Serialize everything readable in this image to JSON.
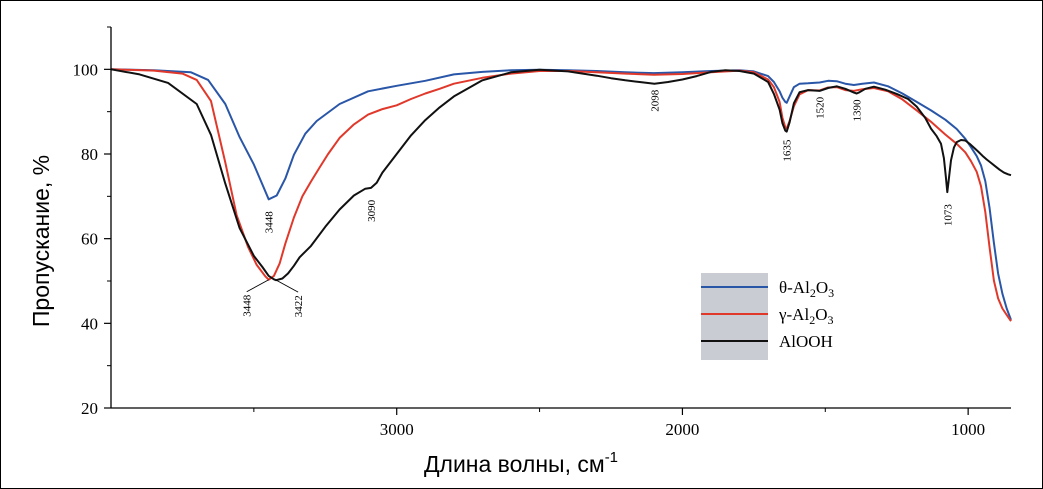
{
  "chart_data": {
    "type": "line",
    "title": "",
    "xlabel": "Длина волны, см",
    "xlabel_sup": "-1",
    "ylabel": "Пропускание, %",
    "xlim": [
      4000,
      850
    ],
    "ylim": [
      20,
      110
    ],
    "xticks": [
      3000,
      2000,
      1000
    ],
    "xtick_labels": [
      "3000",
      "2000",
      "1000"
    ],
    "yticks": [
      20,
      40,
      60,
      80,
      100
    ],
    "ytick_labels": [
      "20",
      "40",
      "60",
      "80",
      "100"
    ],
    "grid": false,
    "legend_position": "right",
    "series": [
      {
        "name": "θ-Al2O3",
        "legend_main": "θ-Al",
        "legend_sub1": "2",
        "legend_mid": "O",
        "legend_sub2": "3",
        "color": "#2a56a8",
        "x": [
          4000,
          3850,
          3720,
          3660,
          3600,
          3550,
          3500,
          3470,
          3448,
          3420,
          3390,
          3360,
          3320,
          3280,
          3200,
          3100,
          3000,
          2900,
          2800,
          2700,
          2600,
          2500,
          2400,
          2300,
          2200,
          2100,
          2000,
          1900,
          1800,
          1750,
          1700,
          1680,
          1660,
          1650,
          1640,
          1635,
          1625,
          1610,
          1590,
          1560,
          1520,
          1490,
          1460,
          1430,
          1400,
          1370,
          1330,
          1280,
          1230,
          1180,
          1130,
          1080,
          1040,
          1010,
          990,
          970,
          955,
          940,
          925,
          910,
          895,
          880,
          865,
          850
        ],
        "y": [
          100,
          99.8,
          99.3,
          97.5,
          91.8,
          84.0,
          77.5,
          72.8,
          69.3,
          70.2,
          74.2,
          79.8,
          84.8,
          87.8,
          91.8,
          94.8,
          96.1,
          97.3,
          98.8,
          99.4,
          99.8,
          99.9,
          99.8,
          99.6,
          99.3,
          99.1,
          99.3,
          99.6,
          99.8,
          99.5,
          98.4,
          97.0,
          94.8,
          93.3,
          92.3,
          92.1,
          93.6,
          95.8,
          96.6,
          96.7,
          96.9,
          97.3,
          97.2,
          96.6,
          96.3,
          96.6,
          96.9,
          96.0,
          94.3,
          92.3,
          90.3,
          88.1,
          85.9,
          83.6,
          81.6,
          79.5,
          77.3,
          73.6,
          67.2,
          59.0,
          51.8,
          47.0,
          43.5,
          40.8
        ]
      },
      {
        "name": "γ-Al2O3",
        "legend_main": "γ-Al",
        "legend_sub1": "2",
        "legend_mid": "O",
        "legend_sub2": "3",
        "color": "#e0392b",
        "x": [
          4000,
          3850,
          3750,
          3700,
          3650,
          3600,
          3560,
          3520,
          3490,
          3460,
          3448,
          3430,
          3410,
          3390,
          3360,
          3330,
          3300,
          3270,
          3240,
          3200,
          3150,
          3100,
          3050,
          3000,
          2950,
          2900,
          2850,
          2800,
          2700,
          2600,
          2500,
          2400,
          2300,
          2200,
          2100,
          2000,
          1900,
          1800,
          1750,
          1700,
          1680,
          1660,
          1650,
          1640,
          1635,
          1625,
          1610,
          1590,
          1560,
          1520,
          1490,
          1460,
          1430,
          1400,
          1370,
          1330,
          1280,
          1230,
          1180,
          1130,
          1080,
          1040,
          1010,
          990,
          970,
          955,
          940,
          925,
          910,
          895,
          880,
          865,
          850
        ],
        "y": [
          100,
          99.7,
          99.0,
          97.5,
          92.5,
          78.0,
          65.5,
          58.0,
          53.8,
          51.1,
          50.3,
          51.2,
          54.1,
          58.8,
          65.0,
          70.0,
          73.5,
          76.8,
          80.0,
          83.8,
          87.0,
          89.3,
          90.6,
          91.5,
          93.0,
          94.3,
          95.4,
          96.6,
          98.0,
          99.0,
          99.6,
          99.6,
          99.3,
          99.0,
          98.7,
          98.9,
          99.3,
          99.7,
          99.3,
          97.6,
          95.8,
          92.3,
          88.6,
          86.3,
          86.0,
          87.8,
          91.3,
          94.1,
          95.1,
          95.0,
          95.7,
          95.8,
          95.1,
          94.9,
          95.3,
          95.6,
          94.8,
          92.9,
          90.3,
          87.6,
          84.6,
          82.4,
          80.4,
          78.3,
          75.8,
          72.4,
          66.3,
          57.9,
          50.1,
          45.9,
          43.5,
          42.0,
          40.5
        ]
      },
      {
        "name": "AlOOH",
        "legend_main": "AlOOH",
        "legend_sub1": "",
        "legend_mid": "",
        "legend_sub2": "",
        "color": "#111111",
        "x": [
          4000,
          3900,
          3800,
          3700,
          3650,
          3600,
          3550,
          3500,
          3470,
          3448,
          3430,
          3422,
          3400,
          3380,
          3360,
          3340,
          3300,
          3250,
          3200,
          3150,
          3110,
          3090,
          3070,
          3050,
          3000,
          2950,
          2900,
          2850,
          2800,
          2700,
          2600,
          2500,
          2400,
          2300,
          2250,
          2200,
          2150,
          2098,
          2050,
          2000,
          1950,
          1900,
          1850,
          1800,
          1750,
          1700,
          1680,
          1660,
          1650,
          1640,
          1635,
          1625,
          1610,
          1590,
          1560,
          1520,
          1490,
          1460,
          1430,
          1400,
          1390,
          1380,
          1360,
          1330,
          1290,
          1250,
          1210,
          1180,
          1150,
          1130,
          1110,
          1095,
          1085,
          1078,
          1073,
          1068,
          1060,
          1050,
          1040,
          1025,
          1010,
          995,
          980,
          965,
          950,
          935,
          920,
          905,
          890,
          875,
          860,
          850
        ],
        "y": [
          100,
          98.8,
          96.8,
          91.8,
          84.5,
          73.0,
          62.5,
          55.9,
          53.3,
          51.2,
          50.4,
          50.2,
          50.6,
          51.8,
          53.6,
          55.6,
          58.3,
          62.8,
          66.9,
          70.2,
          71.8,
          72.0,
          73.2,
          75.6,
          80.0,
          84.4,
          88.0,
          91.0,
          93.6,
          97.4,
          99.3,
          99.9,
          99.5,
          98.5,
          97.9,
          97.4,
          97.0,
          96.6,
          97.0,
          97.6,
          98.4,
          99.4,
          99.8,
          99.6,
          99.0,
          97.0,
          94.2,
          90.5,
          87.3,
          85.5,
          85.3,
          87.5,
          92.0,
          94.6,
          95.1,
          94.9,
          95.6,
          96.0,
          95.4,
          94.5,
          94.3,
          94.6,
          95.4,
          95.9,
          95.2,
          94.2,
          93.0,
          91.2,
          88.5,
          86.0,
          84.2,
          82.4,
          79.0,
          74.5,
          71.0,
          73.8,
          78.5,
          81.5,
          82.8,
          83.3,
          83.2,
          82.4,
          81.5,
          80.6,
          79.6,
          78.7,
          77.9,
          77.1,
          76.3,
          75.6,
          75.2,
          75.0
        ]
      }
    ],
    "annotations": [
      {
        "text": "3448",
        "x": 3448,
        "y": 69.3
      },
      {
        "text": "3090",
        "x": 3090,
        "y": 72.0
      },
      {
        "text": "2098",
        "x": 2098,
        "y": 96.6
      },
      {
        "text": "1635",
        "x": 1635,
        "y": 85.3
      },
      {
        "text": "1520",
        "x": 1520,
        "y": 94.9
      },
      {
        "text": "1390",
        "x": 1390,
        "y": 94.3
      },
      {
        "text": "1073",
        "x": 1073,
        "y": 71.0
      },
      {
        "text": "3448",
        "x": 3448,
        "y": 50.3
      },
      {
        "text": "3422",
        "x": 3422,
        "y": 50.2
      }
    ],
    "legend_box_color": "#c9ccd3"
  }
}
